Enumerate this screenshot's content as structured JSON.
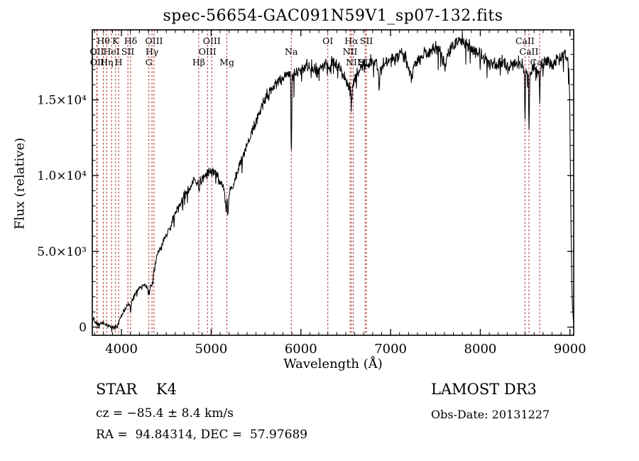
{
  "annotations": {
    "class_line": "STAR    K4",
    "cz_line": "cz = −85.4 ± 8.4 km/s",
    "radec_line": "RA =  94.84314, DEC =  57.97689",
    "survey": "LAMOST DR3",
    "obsdate": "Obs-Date: 20131227"
  },
  "chart_data": {
    "type": "line",
    "title": "spec-56654-GAC091N59V1_sp07-132.fits",
    "xlabel": "Wavelength (Å)",
    "ylabel": "Flux (relative)",
    "xlim": [
      3675,
      9041
    ],
    "ylim": [
      -539,
      19620
    ],
    "grid": false,
    "legend": "none",
    "line_color": "#000000",
    "marker_color": "#aa2222",
    "x_major_ticks": [
      4000,
      5000,
      6000,
      7000,
      8000,
      9000
    ],
    "x_minor_step": 100,
    "y_major_ticks": [
      {
        "value": 0,
        "label": "0"
      },
      {
        "value": 5000,
        "label": "5.0×10³"
      },
      {
        "value": 10000,
        "label": "1.0×10⁴"
      },
      {
        "value": 15000,
        "label": "1.5×10⁴"
      }
    ],
    "y_minor_step": 1000,
    "spectral_lines": [
      {
        "label": "OII",
        "wavelength": 3726.0,
        "row": 2
      },
      {
        "label": "OII",
        "wavelength": 3728.8,
        "row": 3
      },
      {
        "label": "Hθ",
        "wavelength": 3798.0,
        "row": 1
      },
      {
        "label": "Hη",
        "wavelength": 3835.4,
        "row": 3
      },
      {
        "label": "HeI",
        "wavelength": 3888.6,
        "row": 2
      },
      {
        "label": "K",
        "wavelength": 3933.7,
        "row": 1
      },
      {
        "label": "H",
        "wavelength": 3968.5,
        "row": 3
      },
      {
        "label": "SII",
        "wavelength": 4071.7,
        "row": 2
      },
      {
        "label": "Hδ",
        "wavelength": 4101.7,
        "row": 1
      },
      {
        "label": "G",
        "wavelength": 4305.6,
        "row": 3
      },
      {
        "label": "Hγ",
        "wavelength": 4340.5,
        "row": 2
      },
      {
        "label": "OIII",
        "wavelength": 4363.2,
        "row": 1
      },
      {
        "label": "Hβ",
        "wavelength": 4861.3,
        "row": 3
      },
      {
        "label": "OIII",
        "wavelength": 4958.9,
        "row": 2
      },
      {
        "label": "OIII",
        "wavelength": 5006.8,
        "row": 1
      },
      {
        "label": "Mg",
        "wavelength": 5175.4,
        "row": 3
      },
      {
        "label": "Na",
        "wavelength": 5892.9,
        "row": 2
      },
      {
        "label": "OI",
        "wavelength": 6300.3,
        "row": 1
      },
      {
        "label": "NII",
        "wavelength": 6548.1,
        "row": 2
      },
      {
        "label": "Hα",
        "wavelength": 6562.8,
        "row": 1
      },
      {
        "label": "NII",
        "wavelength": 6583.5,
        "row": 3
      },
      {
        "label": "SII",
        "wavelength": 6716.4,
        "row": 3
      },
      {
        "label": "SII",
        "wavelength": 6730.8,
        "row": 1
      },
      {
        "label": "CaII",
        "wavelength": 8498.0,
        "row": 1
      },
      {
        "label": "CaII",
        "wavelength": 8542.1,
        "row": 2
      },
      {
        "label": "CaII",
        "wavelength": 8662.1,
        "row": 3
      }
    ],
    "series": [
      {
        "name": "spectrum",
        "envelope": [
          [
            3675,
            300
          ],
          [
            3690,
            650
          ],
          [
            3710,
            350
          ],
          [
            3740,
            150
          ],
          [
            3790,
            260
          ],
          [
            3830,
            150
          ],
          [
            3880,
            60
          ],
          [
            3920,
            -60
          ],
          [
            3955,
            60
          ],
          [
            3990,
            700
          ],
          [
            4040,
            1200
          ],
          [
            4090,
            1500
          ],
          [
            4102,
            1000
          ],
          [
            4115,
            1700
          ],
          [
            4160,
            2300
          ],
          [
            4210,
            2600
          ],
          [
            4260,
            2800
          ],
          [
            4300,
            2500
          ],
          [
            4310,
            2300
          ],
          [
            4330,
            2900
          ],
          [
            4341,
            2500
          ],
          [
            4360,
            3600
          ],
          [
            4400,
            4800
          ],
          [
            4460,
            5500
          ],
          [
            4520,
            6300
          ],
          [
            4580,
            7200
          ],
          [
            4640,
            8000
          ],
          [
            4700,
            8700
          ],
          [
            4760,
            9100
          ],
          [
            4820,
            9700
          ],
          [
            4855,
            9500
          ],
          [
            4863,
            8900
          ],
          [
            4880,
            9700
          ],
          [
            4930,
            9900
          ],
          [
            4980,
            10200
          ],
          [
            5015,
            10400
          ],
          [
            5060,
            10000
          ],
          [
            5110,
            9500
          ],
          [
            5150,
            9000
          ],
          [
            5168,
            7600
          ],
          [
            5178,
            8500
          ],
          [
            5186,
            7200
          ],
          [
            5200,
            9000
          ],
          [
            5250,
            9400
          ],
          [
            5300,
            10400
          ],
          [
            5360,
            11500
          ],
          [
            5430,
            12400
          ],
          [
            5500,
            13500
          ],
          [
            5570,
            14700
          ],
          [
            5640,
            15500
          ],
          [
            5710,
            16000
          ],
          [
            5780,
            16400
          ],
          [
            5850,
            16700
          ],
          [
            5886,
            16700
          ],
          [
            5891,
            12200
          ],
          [
            5896,
            11600
          ],
          [
            5902,
            16600
          ],
          [
            5960,
            16900
          ],
          [
            6030,
            17200
          ],
          [
            6100,
            17300
          ],
          [
            6160,
            16900
          ],
          [
            6220,
            17100
          ],
          [
            6280,
            17400
          ],
          [
            6310,
            17200
          ],
          [
            6360,
            17600
          ],
          [
            6420,
            17100
          ],
          [
            6480,
            16500
          ],
          [
            6530,
            16000
          ],
          [
            6556,
            15500
          ],
          [
            6563,
            14200
          ],
          [
            6572,
            15800
          ],
          [
            6620,
            16800
          ],
          [
            6680,
            17200
          ],
          [
            6740,
            17400
          ],
          [
            6800,
            17600
          ],
          [
            6860,
            17200
          ],
          [
            6872,
            15600
          ],
          [
            6884,
            16900
          ],
          [
            6920,
            17400
          ],
          [
            6980,
            17600
          ],
          [
            7050,
            17800
          ],
          [
            7120,
            18000
          ],
          [
            7180,
            17600
          ],
          [
            7230,
            16500
          ],
          [
            7280,
            17400
          ],
          [
            7350,
            17900
          ],
          [
            7420,
            18100
          ],
          [
            7500,
            18500
          ],
          [
            7560,
            18300
          ],
          [
            7605,
            17200
          ],
          [
            7650,
            18300
          ],
          [
            7720,
            18700
          ],
          [
            7780,
            19000
          ],
          [
            7840,
            18800
          ],
          [
            7900,
            18400
          ],
          [
            7960,
            18100
          ],
          [
            8030,
            17800
          ],
          [
            8100,
            17400
          ],
          [
            8170,
            17300
          ],
          [
            8240,
            17500
          ],
          [
            8310,
            17100
          ],
          [
            8380,
            17300
          ],
          [
            8440,
            17500
          ],
          [
            8490,
            17000
          ],
          [
            8498,
            13400
          ],
          [
            8508,
            16800
          ],
          [
            8535,
            16600
          ],
          [
            8542,
            12700
          ],
          [
            8552,
            16700
          ],
          [
            8600,
            17200
          ],
          [
            8655,
            16900
          ],
          [
            8662,
            14800
          ],
          [
            8672,
            17200
          ],
          [
            8730,
            17600
          ],
          [
            8800,
            17400
          ],
          [
            8870,
            17600
          ],
          [
            8940,
            18000
          ],
          [
            8975,
            17800
          ],
          [
            8995,
            16000
          ],
          [
            9005,
            10000
          ],
          [
            9015,
            5000
          ],
          [
            9025,
            1500
          ],
          [
            9041,
            300
          ]
        ],
        "noise": {
          "base": 170,
          "flux_frac": 0.022,
          "spike_prob": 0.06,
          "spike_scale": 2.2,
          "seed": 42
        },
        "sample_step": 4
      }
    ]
  }
}
